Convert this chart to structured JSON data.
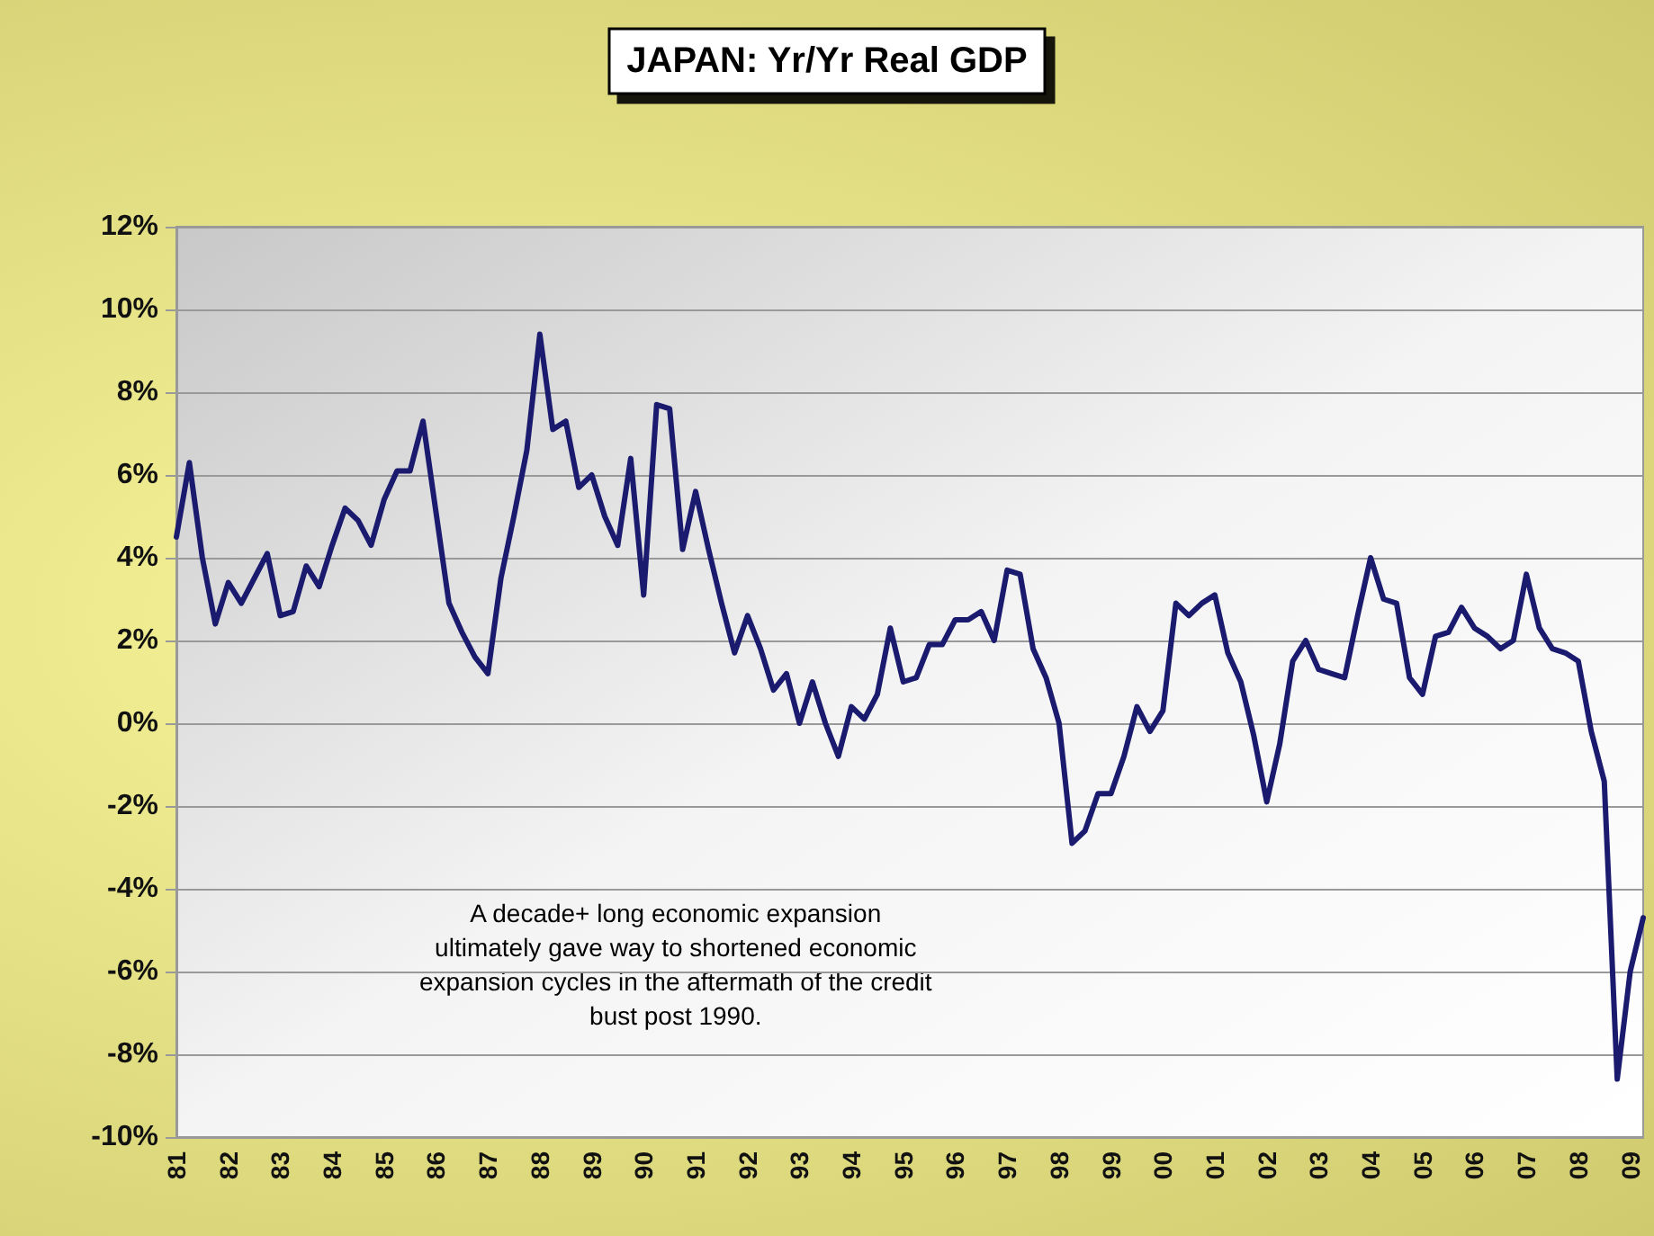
{
  "chart_data": {
    "type": "line",
    "title": "JAPAN: Yr/Yr Real GDP",
    "categories": [
      "81",
      null,
      null,
      null,
      "82",
      null,
      null,
      null,
      "83",
      null,
      null,
      null,
      "84",
      null,
      null,
      null,
      "85",
      null,
      null,
      null,
      "86",
      null,
      null,
      null,
      "87",
      null,
      null,
      null,
      "88",
      null,
      null,
      null,
      "89",
      null,
      null,
      null,
      "90",
      null,
      null,
      null,
      "91",
      null,
      null,
      null,
      "92",
      null,
      null,
      null,
      "93",
      null,
      null,
      null,
      "94",
      null,
      null,
      null,
      "95",
      null,
      null,
      null,
      "96",
      null,
      null,
      null,
      "97",
      null,
      null,
      null,
      "98",
      null,
      null,
      null,
      "99",
      null,
      null,
      null,
      "00",
      null,
      null,
      null,
      "01",
      null,
      null,
      null,
      "02",
      null,
      null,
      null,
      "03",
      null,
      null,
      null,
      "04",
      null,
      null,
      null,
      "05",
      null,
      null,
      null,
      "06",
      null,
      null,
      null,
      "07",
      null,
      null,
      null,
      "08",
      null,
      null,
      null,
      "09",
      null
    ],
    "series": [
      {
        "color": "#1a1a6e",
        "values": [
          4.5,
          6.3,
          4.0,
          2.4,
          3.4,
          2.9,
          3.5,
          4.1,
          2.6,
          2.7,
          3.8,
          3.3,
          4.3,
          5.2,
          4.9,
          4.3,
          5.4,
          6.1,
          6.1,
          7.3,
          5.1,
          2.9,
          2.2,
          1.6,
          1.2,
          3.5,
          5.0,
          6.6,
          9.4,
          7.1,
          7.3,
          5.7,
          6.0,
          5.0,
          4.3,
          6.4,
          3.1,
          7.7,
          7.6,
          4.2,
          5.6,
          4.2,
          2.9,
          1.7,
          2.6,
          1.8,
          0.8,
          1.2,
          0.0,
          1.0,
          0.0,
          -0.8,
          0.4,
          0.1,
          0.7,
          2.3,
          1.0,
          1.1,
          1.9,
          1.9,
          2.5,
          2.5,
          2.7,
          2.0,
          3.7,
          3.6,
          1.8,
          1.1,
          0.0,
          -2.9,
          -2.6,
          -1.7,
          -1.7,
          -0.8,
          0.4,
          -0.2,
          0.3,
          2.9,
          2.6,
          2.9,
          3.1,
          1.7,
          1.0,
          -0.3,
          -1.9,
          -0.5,
          1.5,
          2.0,
          1.3,
          1.2,
          1.1,
          2.6,
          4.0,
          3.0,
          2.9,
          1.1,
          0.7,
          2.1,
          2.2,
          2.8,
          2.3,
          2.1,
          1.8,
          2.0,
          3.6,
          2.3,
          1.8,
          1.7,
          1.5,
          -0.2,
          -1.4,
          -8.6,
          -6.0,
          -4.7
        ]
      }
    ],
    "ylim": [
      -10,
      12
    ],
    "yticks": [
      {
        "value": -10,
        "label": "-10%"
      },
      {
        "value": -8,
        "label": "-8%"
      },
      {
        "value": -6,
        "label": "-6%"
      },
      {
        "value": -4,
        "label": "-4%"
      },
      {
        "value": -2,
        "label": "-2%"
      },
      {
        "value": 0,
        "label": "0%"
      },
      {
        "value": 2,
        "label": "2%"
      },
      {
        "value": 4,
        "label": "4%"
      },
      {
        "value": 6,
        "label": "6%"
      },
      {
        "value": 8,
        "label": "8%"
      },
      {
        "value": 10,
        "label": "10%"
      },
      {
        "value": 12,
        "label": "12%"
      }
    ],
    "grid": "y",
    "marker": "none",
    "line_style": "solid",
    "annotations": [
      "A decade+ long economic expansion\nultimately gave way to shortened economic\nexpansion cycles in the aftermath of the credit\nbust post 1990."
    ]
  }
}
